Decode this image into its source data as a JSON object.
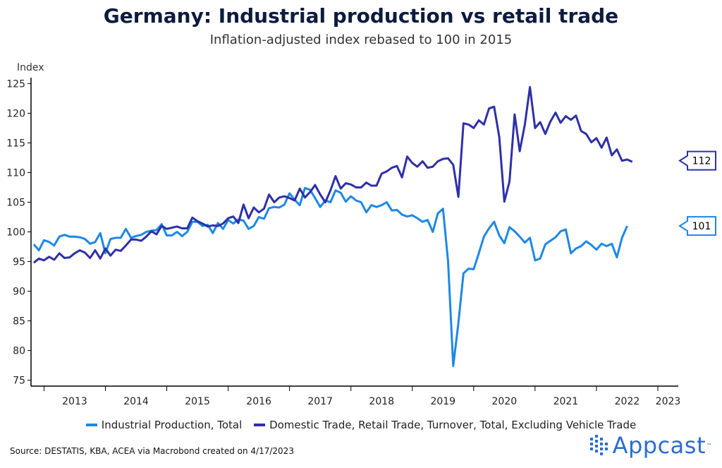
{
  "chart_data": {
    "type": "line",
    "title": "Germany: Industrial production vs retail trade",
    "subtitle": "Inflation-adjusted index rebased to 100 in 2015",
    "ylabel": "Index",
    "xlabel": "",
    "ylim": [
      74,
      126
    ],
    "yticks": [
      75,
      80,
      85,
      90,
      95,
      100,
      105,
      110,
      115,
      120,
      125
    ],
    "xlim": [
      "2012-10-15",
      "2023-05-01"
    ],
    "xtick_labels": [
      "2013",
      "2014",
      "2015",
      "2016",
      "2017",
      "2018",
      "2019",
      "2020",
      "2021",
      "2022",
      "2023"
    ],
    "grid": false,
    "legend_position": "bottom",
    "series": [
      {
        "name": "Industrial Production, Total",
        "color": "#1e88e5",
        "end_label": "101",
        "values": [
          [
            "2012-11",
            97.9
          ],
          [
            "2012-12",
            96.9
          ],
          [
            "2013-01",
            98.6
          ],
          [
            "2013-02",
            98.3
          ],
          [
            "2013-03",
            97.7
          ],
          [
            "2013-04",
            99.2
          ],
          [
            "2013-05",
            99.5
          ],
          [
            "2013-06",
            99.2
          ],
          [
            "2013-07",
            99.2
          ],
          [
            "2013-08",
            99.1
          ],
          [
            "2013-09",
            98.8
          ],
          [
            "2013-10",
            98.0
          ],
          [
            "2013-11",
            98.3
          ],
          [
            "2013-12",
            99.8
          ],
          [
            "2014-01",
            96.4
          ],
          [
            "2014-02",
            98.8
          ],
          [
            "2014-03",
            99.0
          ],
          [
            "2014-04",
            99.0
          ],
          [
            "2014-05",
            100.5
          ],
          [
            "2014-06",
            99.0
          ],
          [
            "2014-07",
            99.3
          ],
          [
            "2014-08",
            99.5
          ],
          [
            "2014-09",
            100.0
          ],
          [
            "2014-10",
            100.2
          ],
          [
            "2014-11",
            100.3
          ],
          [
            "2014-12",
            101.3
          ],
          [
            "2015-01",
            99.4
          ],
          [
            "2015-02",
            99.4
          ],
          [
            "2015-03",
            100.0
          ],
          [
            "2015-04",
            99.3
          ],
          [
            "2015-05",
            100.0
          ],
          [
            "2015-06",
            101.7
          ],
          [
            "2015-07",
            101.7
          ],
          [
            "2015-08",
            101.0
          ],
          [
            "2015-09",
            101.2
          ],
          [
            "2015-10",
            99.8
          ],
          [
            "2015-11",
            101.5
          ],
          [
            "2015-12",
            100.5
          ],
          [
            "2016-01",
            102.0
          ],
          [
            "2016-02",
            101.4
          ],
          [
            "2016-03",
            102.1
          ],
          [
            "2016-04",
            101.9
          ],
          [
            "2016-05",
            100.5
          ],
          [
            "2016-06",
            101.0
          ],
          [
            "2016-07",
            102.5
          ],
          [
            "2016-08",
            102.2
          ],
          [
            "2016-09",
            104.0
          ],
          [
            "2016-10",
            104.2
          ],
          [
            "2016-11",
            104.1
          ],
          [
            "2016-12",
            104.6
          ],
          [
            "2017-01",
            106.5
          ],
          [
            "2017-02",
            105.4
          ],
          [
            "2017-03",
            104.5
          ],
          [
            "2017-04",
            107.4
          ],
          [
            "2017-05",
            107.1
          ],
          [
            "2017-06",
            105.7
          ],
          [
            "2017-07",
            104.2
          ],
          [
            "2017-08",
            105.3
          ],
          [
            "2017-09",
            105.0
          ],
          [
            "2017-10",
            107.0
          ],
          [
            "2017-11",
            106.6
          ],
          [
            "2017-12",
            105.1
          ],
          [
            "2018-01",
            106.0
          ],
          [
            "2018-02",
            105.3
          ],
          [
            "2018-03",
            105.0
          ],
          [
            "2018-04",
            103.3
          ],
          [
            "2018-05",
            104.5
          ],
          [
            "2018-06",
            104.2
          ],
          [
            "2018-07",
            104.5
          ],
          [
            "2018-08",
            105.0
          ],
          [
            "2018-09",
            103.6
          ],
          [
            "2018-10",
            103.7
          ],
          [
            "2018-11",
            102.9
          ],
          [
            "2018-12",
            102.6
          ],
          [
            "2019-01",
            102.8
          ],
          [
            "2019-02",
            102.3
          ],
          [
            "2019-03",
            101.7
          ],
          [
            "2019-04",
            102.0
          ],
          [
            "2019-05",
            100.0
          ],
          [
            "2019-06",
            103.1
          ],
          [
            "2019-07",
            103.9
          ],
          [
            "2019-08",
            95.0
          ],
          [
            "2019-09",
            77.4
          ],
          [
            "2019-10",
            84.6
          ],
          [
            "2019-11",
            93.0
          ],
          [
            "2019-12",
            93.8
          ],
          [
            "2020-01",
            93.7
          ],
          [
            "2020-02",
            96.4
          ],
          [
            "2020-03",
            99.2
          ],
          [
            "2020-04",
            100.6
          ],
          [
            "2020-05",
            101.7
          ],
          [
            "2020-06",
            99.4
          ],
          [
            "2020-07",
            98.1
          ],
          [
            "2020-08",
            100.8
          ],
          [
            "2020-09",
            100.1
          ],
          [
            "2020-10",
            99.2
          ],
          [
            "2020-11",
            98.2
          ],
          [
            "2020-12",
            99.0
          ],
          [
            "2021-01",
            95.2
          ],
          [
            "2021-02",
            95.5
          ],
          [
            "2021-03",
            97.9
          ],
          [
            "2021-04",
            98.5
          ],
          [
            "2021-05",
            99.1
          ],
          [
            "2021-06",
            100.1
          ],
          [
            "2021-07",
            100.4
          ],
          [
            "2021-08",
            96.4
          ],
          [
            "2021-09",
            97.2
          ],
          [
            "2021-10",
            97.6
          ],
          [
            "2021-11",
            98.4
          ],
          [
            "2021-12",
            97.8
          ],
          [
            "2022-01",
            97.0
          ],
          [
            "2022-02",
            98.0
          ],
          [
            "2022-03",
            97.6
          ],
          [
            "2022-04",
            98.0
          ],
          [
            "2022-05",
            95.7
          ],
          [
            "2022-06",
            99.0
          ],
          [
            "2022-07",
            101.0
          ]
        ]
      },
      {
        "name": "Domestic Trade, Retail Trade, Turnover, Total, Excluding Vehicle Trade",
        "color": "#2e30a8",
        "end_label": "112",
        "values": [
          [
            "2012-11",
            94.8
          ],
          [
            "2012-12",
            95.5
          ],
          [
            "2013-01",
            95.2
          ],
          [
            "2013-02",
            95.8
          ],
          [
            "2013-03",
            95.3
          ],
          [
            "2013-04",
            96.4
          ],
          [
            "2013-05",
            95.6
          ],
          [
            "2013-06",
            95.7
          ],
          [
            "2013-07",
            96.4
          ],
          [
            "2013-08",
            96.9
          ],
          [
            "2013-09",
            96.5
          ],
          [
            "2013-10",
            95.6
          ],
          [
            "2013-11",
            96.9
          ],
          [
            "2013-12",
            95.5
          ],
          [
            "2014-01",
            97.2
          ],
          [
            "2014-02",
            96.0
          ],
          [
            "2014-03",
            97.0
          ],
          [
            "2014-04",
            96.8
          ],
          [
            "2014-05",
            97.7
          ],
          [
            "2014-06",
            98.7
          ],
          [
            "2014-07",
            98.7
          ],
          [
            "2014-08",
            98.5
          ],
          [
            "2014-09",
            99.2
          ],
          [
            "2014-10",
            100.1
          ],
          [
            "2014-11",
            99.6
          ],
          [
            "2014-12",
            101.0
          ],
          [
            "2015-01",
            100.5
          ],
          [
            "2015-02",
            100.7
          ],
          [
            "2015-03",
            100.9
          ],
          [
            "2015-04",
            100.6
          ],
          [
            "2015-05",
            100.6
          ],
          [
            "2015-06",
            102.4
          ],
          [
            "2015-07",
            101.8
          ],
          [
            "2015-08",
            101.4
          ],
          [
            "2015-09",
            100.9
          ],
          [
            "2015-10",
            101.1
          ],
          [
            "2015-11",
            101.0
          ],
          [
            "2015-12",
            101.4
          ],
          [
            "2016-01",
            102.3
          ],
          [
            "2016-02",
            102.6
          ],
          [
            "2016-03",
            101.5
          ],
          [
            "2016-04",
            104.6
          ],
          [
            "2016-05",
            102.3
          ],
          [
            "2016-06",
            104.1
          ],
          [
            "2016-07",
            103.3
          ],
          [
            "2016-08",
            103.9
          ],
          [
            "2016-09",
            106.3
          ],
          [
            "2016-10",
            105.0
          ],
          [
            "2016-11",
            105.8
          ],
          [
            "2016-12",
            106.0
          ],
          [
            "2017-01",
            105.7
          ],
          [
            "2017-02",
            105.3
          ],
          [
            "2017-03",
            107.3
          ],
          [
            "2017-04",
            105.8
          ],
          [
            "2017-05",
            106.7
          ],
          [
            "2017-06",
            107.9
          ],
          [
            "2017-07",
            106.3
          ],
          [
            "2017-08",
            105.0
          ],
          [
            "2017-09",
            107.0
          ],
          [
            "2017-10",
            109.4
          ],
          [
            "2017-11",
            107.3
          ],
          [
            "2017-12",
            108.2
          ],
          [
            "2018-01",
            108.0
          ],
          [
            "2018-02",
            107.5
          ],
          [
            "2018-03",
            107.5
          ],
          [
            "2018-04",
            108.3
          ],
          [
            "2018-05",
            107.8
          ],
          [
            "2018-06",
            107.8
          ],
          [
            "2018-07",
            109.8
          ],
          [
            "2018-08",
            110.2
          ],
          [
            "2018-09",
            110.8
          ],
          [
            "2018-10",
            111.1
          ],
          [
            "2018-11",
            109.2
          ],
          [
            "2018-12",
            112.7
          ],
          [
            "2019-01",
            111.6
          ],
          [
            "2019-02",
            111.0
          ],
          [
            "2019-03",
            111.9
          ],
          [
            "2019-04",
            110.8
          ],
          [
            "2019-05",
            111.0
          ],
          [
            "2019-06",
            111.9
          ],
          [
            "2019-07",
            112.3
          ],
          [
            "2019-08",
            112.4
          ],
          [
            "2019-09",
            111.3
          ],
          [
            "2019-10",
            105.9
          ],
          [
            "2019-11",
            118.3
          ],
          [
            "2019-12",
            118.1
          ],
          [
            "2020-01",
            117.5
          ],
          [
            "2020-02",
            118.8
          ],
          [
            "2020-03",
            118.1
          ],
          [
            "2020-04",
            120.8
          ],
          [
            "2020-05",
            121.1
          ],
          [
            "2020-06",
            116.0
          ],
          [
            "2020-07",
            105.1
          ],
          [
            "2020-08",
            108.5
          ],
          [
            "2020-09",
            119.8
          ],
          [
            "2020-10",
            113.6
          ],
          [
            "2020-11",
            118.1
          ],
          [
            "2020-12",
            124.4
          ],
          [
            "2021-01",
            117.5
          ],
          [
            "2021-02",
            118.5
          ],
          [
            "2021-03",
            116.5
          ],
          [
            "2021-04",
            118.6
          ],
          [
            "2021-05",
            120.1
          ],
          [
            "2021-06",
            118.4
          ],
          [
            "2021-07",
            119.5
          ],
          [
            "2021-08",
            118.9
          ],
          [
            "2021-09",
            119.6
          ],
          [
            "2021-10",
            117.0
          ],
          [
            "2021-11",
            116.5
          ],
          [
            "2021-12",
            115.1
          ],
          [
            "2022-01",
            115.8
          ],
          [
            "2022-02",
            114.2
          ],
          [
            "2022-03",
            115.9
          ],
          [
            "2022-04",
            112.9
          ],
          [
            "2022-05",
            113.9
          ],
          [
            "2022-06",
            112.0
          ],
          [
            "2022-07",
            112.2
          ],
          [
            "2022-08",
            111.8
          ]
        ]
      }
    ]
  },
  "source": "Source: DESTATIS, KBA, ACEA via Macrobond created on 4/17/2023",
  "logo": {
    "text": "Appcast",
    "tm": "™",
    "color": "#2b6cd1"
  }
}
